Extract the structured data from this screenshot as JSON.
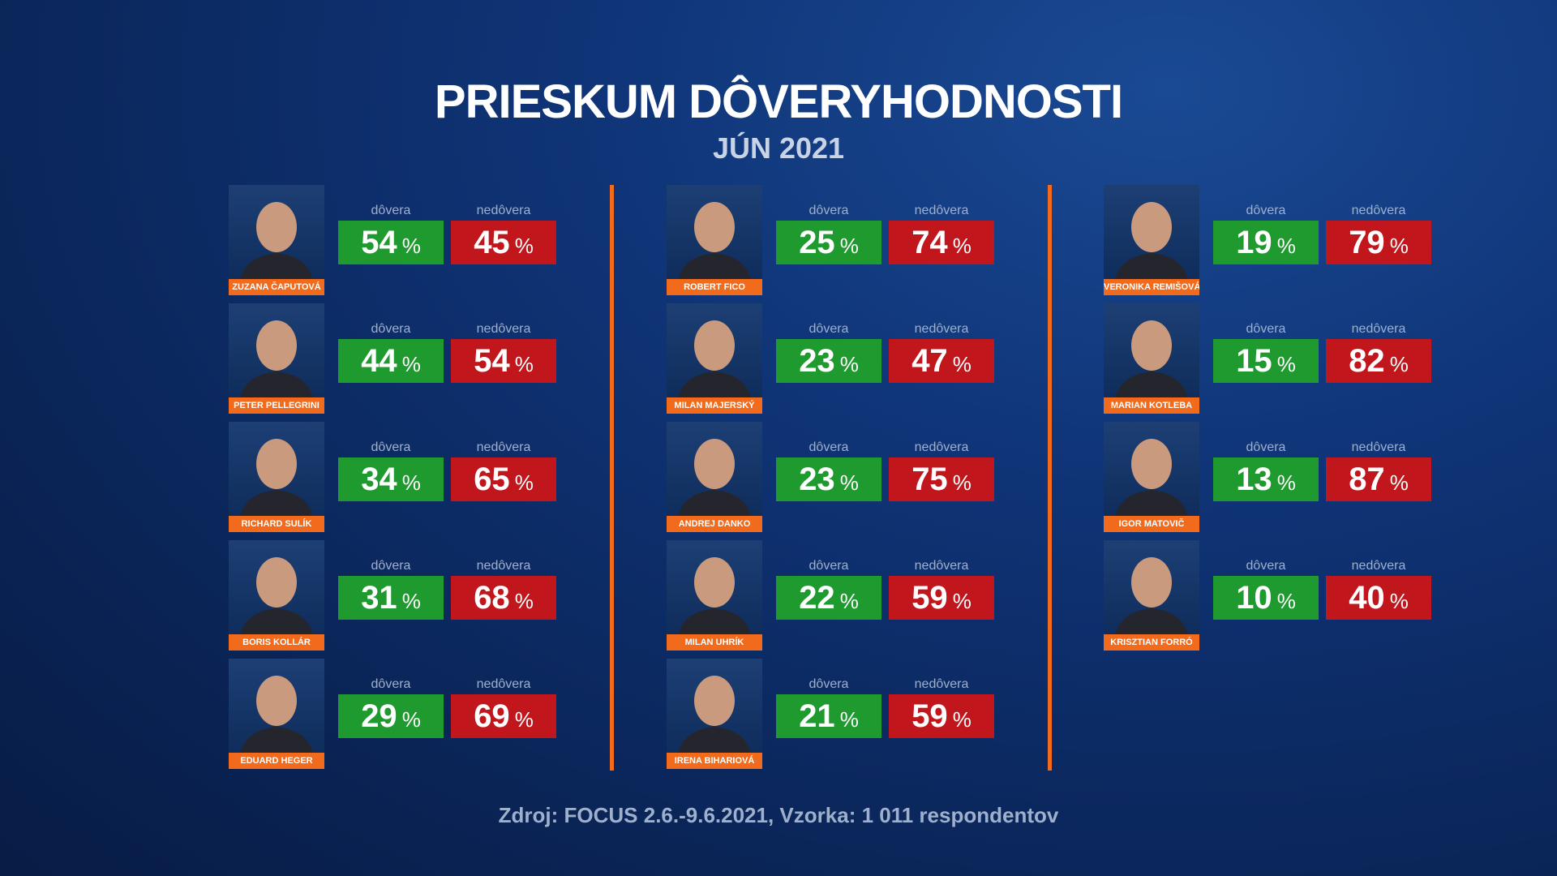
{
  "title": "PRIESKUM DÔVERYHODNOSTI",
  "subtitle": "JÚN 2021",
  "source": "Zdroj: FOCUS 2.6.-9.6.2021, Vzorka: 1 011 respondentov",
  "trust_label": "dôvera",
  "distrust_label": "nedôvera",
  "percent_sign": "%",
  "colors": {
    "trust": "#1f9a2e",
    "distrust": "#c0161c",
    "accent": "#f26a1b",
    "background": "#0f3477"
  },
  "chart_data": {
    "type": "table",
    "title": "PRIESKUM DÔVERYHODNOSTI",
    "subtitle": "JÚN 2021",
    "columns": [
      [
        {
          "name": "ZUZANA ČAPUTOVÁ",
          "trust": "54",
          "distrust": "45"
        },
        {
          "name": "PETER PELLEGRINI",
          "trust": "44",
          "distrust": "54"
        },
        {
          "name": "RICHARD SULÍK",
          "trust": "34",
          "distrust": "65"
        },
        {
          "name": "BORIS KOLLÁR",
          "trust": "31",
          "distrust": "68"
        },
        {
          "name": "EDUARD HEGER",
          "trust": "29",
          "distrust": "69"
        }
      ],
      [
        {
          "name": "ROBERT FICO",
          "trust": "25",
          "distrust": "74"
        },
        {
          "name": "MILAN MAJERSKÝ",
          "trust": "23",
          "distrust": "47"
        },
        {
          "name": "ANDREJ DANKO",
          "trust": "23",
          "distrust": "75"
        },
        {
          "name": "MILAN UHRÍK",
          "trust": "22",
          "distrust": "59"
        },
        {
          "name": "IRENA BIHARIOVÁ",
          "trust": "21",
          "distrust": "59"
        }
      ],
      [
        {
          "name": "VERONIKA REMIŠOVÁ",
          "trust": "19",
          "distrust": "79"
        },
        {
          "name": "MARIAN KOTLEBA",
          "trust": "15",
          "distrust": "82"
        },
        {
          "name": "IGOR MATOVIČ",
          "trust": "13",
          "distrust": "87"
        },
        {
          "name": "KRISZTIAN FORRÓ",
          "trust": "10",
          "distrust": "40"
        }
      ]
    ]
  }
}
